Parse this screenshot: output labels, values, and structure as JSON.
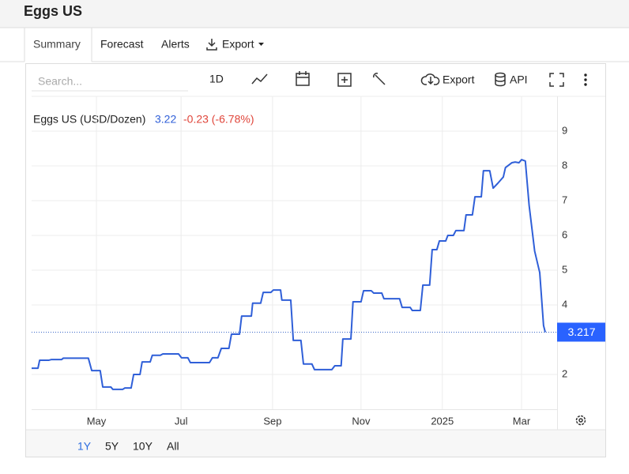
{
  "header": {
    "title": "Eggs US"
  },
  "tabs": [
    "Summary",
    "Forecast",
    "Alerts",
    "Export"
  ],
  "toolbar": {
    "search_placeholder": "Search...",
    "interval": "1D",
    "export": "Export",
    "api": "API"
  },
  "range_buttons": [
    "1Y",
    "5Y",
    "10Y",
    "All"
  ],
  "chart_data": {
    "type": "line",
    "title": "Eggs US (USD/Dozen)",
    "last": 3.22,
    "change_label": "-0.23 (-6.78%)",
    "color": "#2f5fd8",
    "x": [
      3.47,
      3.62,
      3.66,
      3.88,
      3.94,
      4.18,
      4.22,
      4.81,
      4.89,
      5.09,
      5.15,
      5.34,
      5.39,
      5.62,
      5.67,
      5.82,
      5.88,
      6.03,
      6.08,
      6.27,
      6.32,
      6.51,
      6.57,
      6.94,
      7.01,
      7.16,
      7.22,
      7.67,
      7.74,
      7.87,
      7.95,
      8.13,
      8.19,
      8.38,
      8.43,
      8.66,
      8.69,
      8.88,
      8.94,
      9.12,
      9.18,
      9.35,
      9.38,
      9.59,
      9.65,
      9.83,
      9.89,
      10.09,
      10.15,
      10.56,
      10.63,
      10.78,
      10.82,
      11.01,
      11.06,
      11.25,
      11.31,
      11.49,
      11.55,
      11.74,
      11.79,
      12.16,
      12.22,
      12.41,
      12.46,
      12.65,
      12.71,
      12.87,
      12.93,
      13.04,
      13.1,
      13.25,
      13.3,
      13.43,
      13.49,
      13.68,
      13.73,
      13.88,
      13.94,
      14.09,
      14.14,
      14.29,
      14.37,
      14.48,
      14.61,
      14.66,
      14.81,
      14.89,
      14.98,
      15.04,
      15.13,
      15.22,
      15.35,
      15.47,
      15.56,
      15.6
    ],
    "values": [
      2.18,
      2.18,
      2.41,
      2.41,
      2.43,
      2.43,
      2.47,
      2.47,
      2.11,
      2.11,
      1.64,
      1.64,
      1.57,
      1.57,
      1.61,
      1.61,
      2.0,
      2.0,
      2.36,
      2.36,
      2.55,
      2.55,
      2.59,
      2.59,
      2.48,
      2.48,
      2.34,
      2.34,
      2.48,
      2.48,
      2.75,
      2.75,
      3.16,
      3.16,
      3.68,
      3.68,
      4.05,
      4.05,
      4.36,
      4.36,
      4.43,
      4.43,
      4.14,
      4.14,
      2.98,
      2.98,
      2.3,
      2.3,
      2.14,
      2.14,
      2.25,
      2.25,
      3.02,
      3.02,
      4.09,
      4.09,
      4.41,
      4.41,
      4.34,
      4.34,
      4.18,
      4.18,
      3.93,
      3.93,
      3.84,
      3.84,
      4.57,
      4.57,
      5.59,
      5.59,
      5.84,
      5.84,
      6.0,
      6.0,
      6.14,
      6.14,
      6.59,
      6.59,
      7.11,
      7.11,
      7.86,
      7.86,
      7.36,
      7.5,
      7.68,
      7.95,
      8.09,
      8.11,
      8.09,
      8.18,
      8.14,
      6.86,
      5.55,
      4.93,
      3.41,
      3.217
    ],
    "last_value": 3.217,
    "xlim": [
      3.47,
      15.88
    ],
    "xticks": [
      {
        "value": 5,
        "label": "May"
      },
      {
        "value": 7,
        "label": "Jul"
      },
      {
        "value": 9.16,
        "label": "Sep"
      },
      {
        "value": 11.25,
        "label": "Nov"
      },
      {
        "value": 13.17,
        "label": "2025"
      },
      {
        "value": 15.04,
        "label": "Mar"
      }
    ],
    "ylim": [
      1,
      10
    ],
    "yticks": [
      2,
      4,
      5,
      6,
      7,
      8,
      9
    ],
    "grid": true
  }
}
